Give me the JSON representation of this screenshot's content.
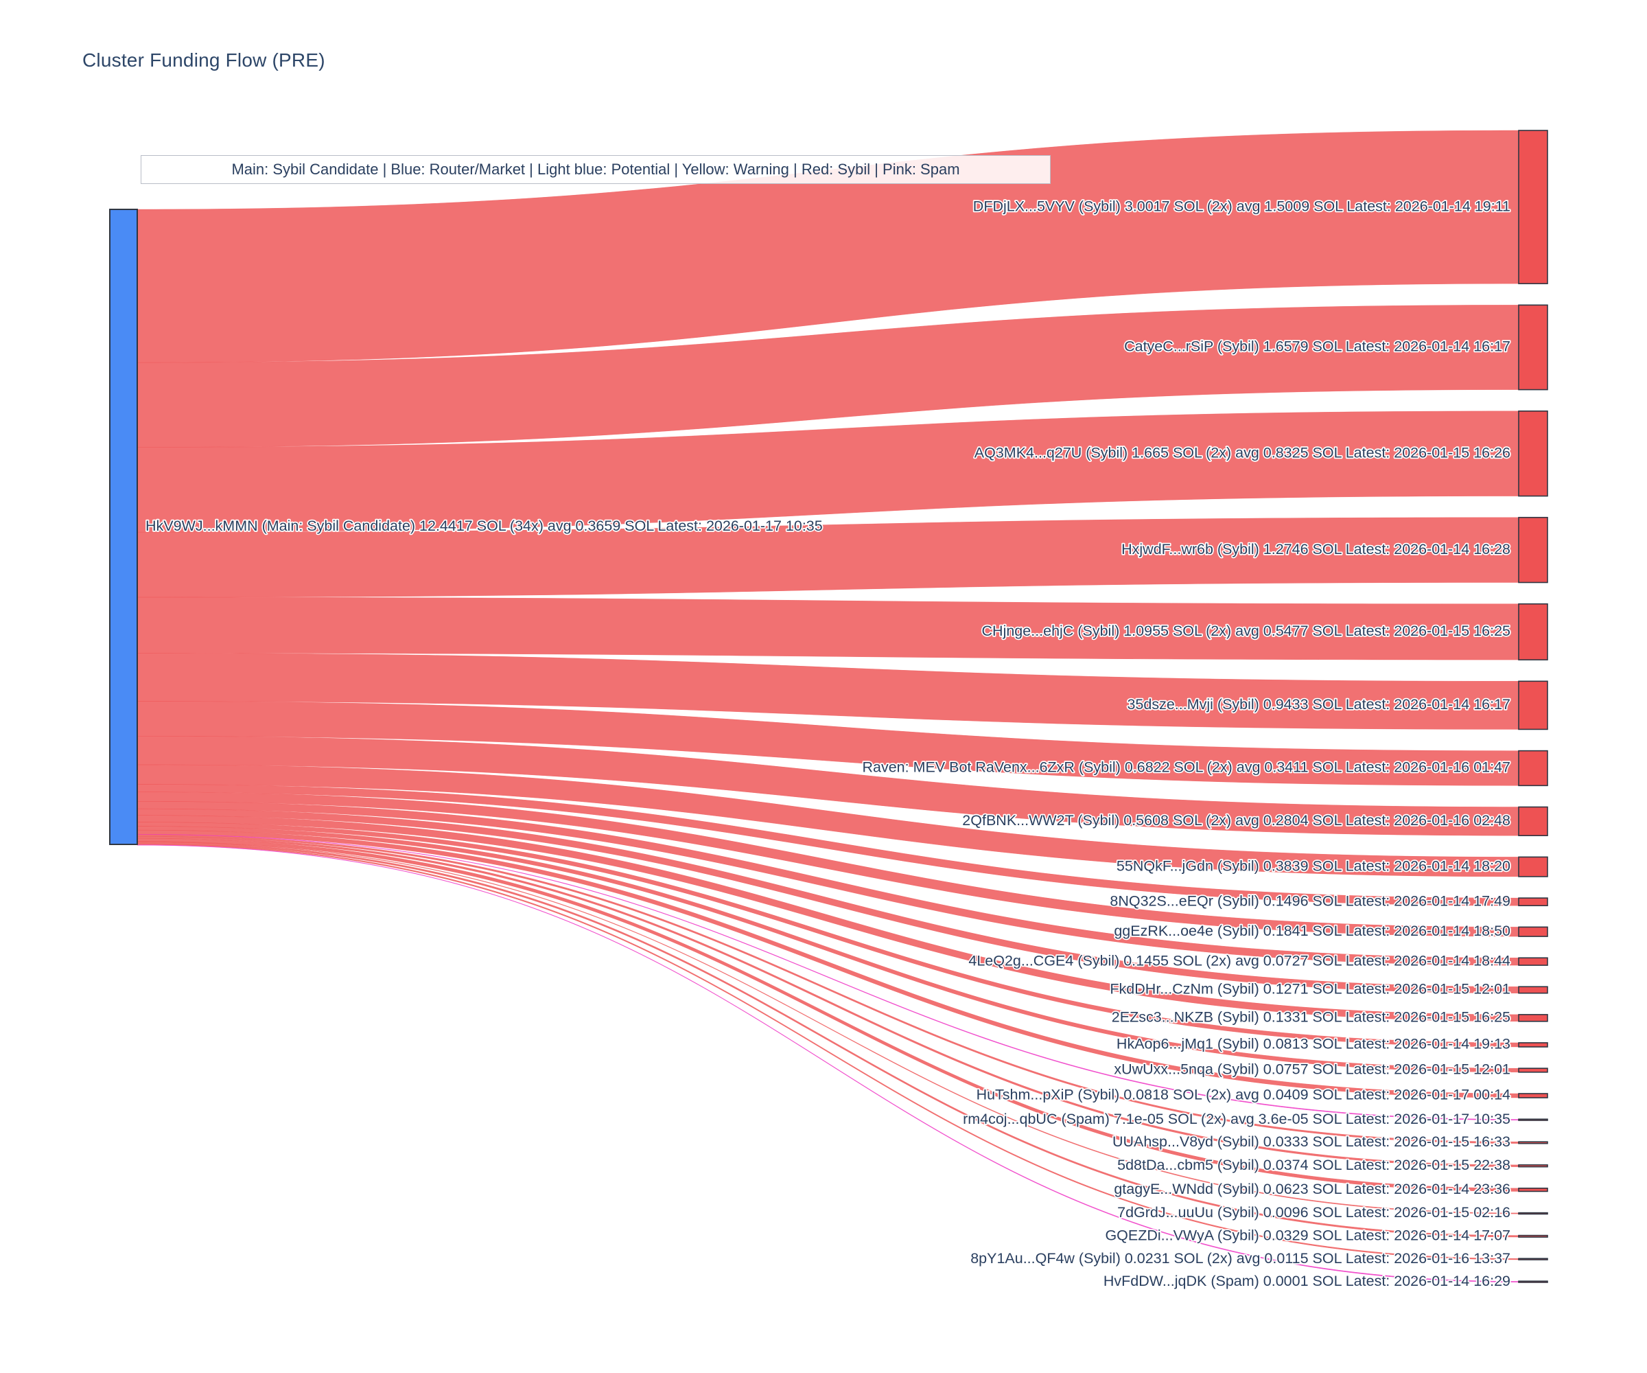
{
  "title": "Cluster Funding Flow (PRE)",
  "legend_note": "Main: Sybil Candidate  |  Blue: Router/Market | Light blue: Potential | Yellow: Warning | Red: Sybil | Pink: Spam",
  "colors": {
    "source_node": "#4a8bf5",
    "sybil_node": "#ee5253",
    "sybil_link": "rgba(238,82,83,0.82)",
    "spam_link": "rgba(240,62,199,0.9)",
    "node_border": "#2f3642",
    "label_text": "#2a3f5f",
    "title_text": "#2d4668"
  },
  "chart_data": {
    "type": "sankey",
    "orientation": "horizontal",
    "units": "SOL",
    "source": {
      "label": "HkV9WJ...kMMN (Main: Sybil Candidate) 12.4417 SOL (34x) avg 0.3659 SOL Latest: 2026-01-17 10:35",
      "total_sol": 12.4417,
      "tx_count": "34x",
      "avg_sol": 0.3659,
      "latest": "2026-01-17 10:35",
      "category": "Main: Sybil Candidate"
    },
    "targets": [
      {
        "label": "DFDjLX...5VYV (Sybil) 3.0017 SOL (2x) avg 1.5009 SOL Latest: 2026-01-14 19:11",
        "value": 3.0017,
        "status": "sybil"
      },
      {
        "label": "CatyeC...rSiP (Sybil) 1.6579 SOL Latest: 2026-01-14 16:17",
        "value": 1.6579,
        "status": "sybil"
      },
      {
        "label": "AQ3MK4...q27U (Sybil) 1.665 SOL (2x) avg 0.8325 SOL Latest: 2026-01-15 16:26",
        "value": 1.665,
        "status": "sybil"
      },
      {
        "label": "HxjwdF...wr6b (Sybil) 1.2746 SOL Latest: 2026-01-14 16:28",
        "value": 1.2746,
        "status": "sybil"
      },
      {
        "label": "CHjnge...ehjC (Sybil) 1.0955 SOL (2x) avg 0.5477 SOL Latest: 2026-01-15 16:25",
        "value": 1.0955,
        "status": "sybil"
      },
      {
        "label": "35dsze...Mvji (Sybil) 0.9433 SOL Latest: 2026-01-14 16:17",
        "value": 0.9433,
        "status": "sybil"
      },
      {
        "label": "Raven: MEV Bot RaVenx...6ZxR (Sybil) 0.6822 SOL (2x) avg 0.3411 SOL Latest: 2026-01-16 01:47",
        "value": 0.6822,
        "status": "sybil"
      },
      {
        "label": "2QfBNK...WW2T (Sybil) 0.5608 SOL (2x) avg 0.2804 SOL Latest: 2026-01-16 02:48",
        "value": 0.5608,
        "status": "sybil"
      },
      {
        "label": "55NQkF...jGdn (Sybil) 0.3839 SOL Latest: 2026-01-14 18:20",
        "value": 0.3839,
        "status": "sybil"
      },
      {
        "label": "8NQ32S...eEQr (Sybil) 0.1496 SOL Latest: 2026-01-14 17:49",
        "value": 0.1496,
        "status": "sybil"
      },
      {
        "label": "ggEzRK...oe4e (Sybil) 0.1841 SOL Latest: 2026-01-14 18:50",
        "value": 0.1841,
        "status": "sybil"
      },
      {
        "label": "4LeQ2g...CGE4 (Sybil) 0.1455 SOL (2x) avg 0.0727 SOL Latest: 2026-01-14 18:44",
        "value": 0.1455,
        "status": "sybil"
      },
      {
        "label": "FkdDHr...CzNm (Sybil) 0.1271 SOL Latest: 2026-01-15 12:01",
        "value": 0.1271,
        "status": "sybil"
      },
      {
        "label": "2EZsc3...NKZB (Sybil) 0.1331 SOL Latest: 2026-01-15 16:25",
        "value": 0.1331,
        "status": "sybil"
      },
      {
        "label": "HkAop6...jMq1 (Sybil) 0.0813 SOL Latest: 2026-01-14 19:13",
        "value": 0.0813,
        "status": "sybil"
      },
      {
        "label": "xUwUxx...5nqa (Sybil) 0.0757 SOL Latest: 2026-01-15 12:01",
        "value": 0.0757,
        "status": "sybil"
      },
      {
        "label": "HuTshm...pXiP (Sybil) 0.0818 SOL (2x) avg 0.0409 SOL Latest: 2026-01-17 00:14",
        "value": 0.0818,
        "status": "sybil"
      },
      {
        "label": "rm4coj...qbUC (Spam) 7.1e-05 SOL (2x) avg 3.6e-05 SOL Latest: 2026-01-17 10:35",
        "value": 7.1e-05,
        "status": "spam"
      },
      {
        "label": "UUAhsp...V8yd (Sybil) 0.0333 SOL Latest: 2026-01-15 16:33",
        "value": 0.0333,
        "status": "sybil"
      },
      {
        "label": "5d8tDa...cbm5 (Sybil) 0.0374 SOL Latest: 2026-01-15 22:38",
        "value": 0.0374,
        "status": "sybil"
      },
      {
        "label": "gtagyE...WNdd (Sybil) 0.0623 SOL Latest: 2026-01-14 23:36",
        "value": 0.0623,
        "status": "sybil"
      },
      {
        "label": "7dGrdJ...uuUu (Sybil) 0.0096 SOL Latest: 2026-01-15 02:16",
        "value": 0.0096,
        "status": "sybil"
      },
      {
        "label": "GQEZDi...VWyA (Sybil) 0.0329 SOL Latest: 2026-01-14 17:07",
        "value": 0.0329,
        "status": "sybil"
      },
      {
        "label": "8pY1Au...QF4w (Sybil) 0.0231 SOL (2x) avg 0.0115 SOL Latest: 2026-01-16 13:37",
        "value": 0.0231,
        "status": "sybil"
      },
      {
        "label": "HvFdDW...jqDK (Spam) 0.0001 SOL Latest: 2026-01-14 16:29",
        "value": 0.0001,
        "status": "spam"
      }
    ]
  }
}
